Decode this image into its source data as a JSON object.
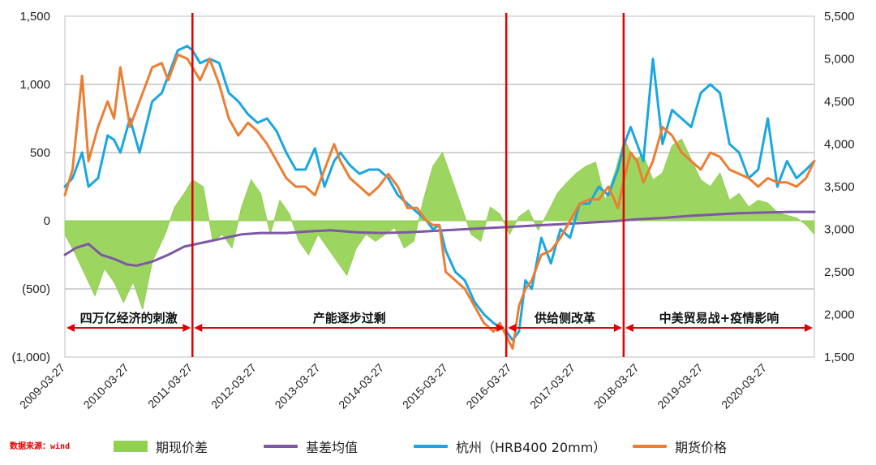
{
  "source_note": "数据来源：wind",
  "chart_data": {
    "type": "line",
    "x_ticks": [
      "2009-03-27",
      "2010-03-27",
      "2011-03-27",
      "2012-03-27",
      "2013-03-27",
      "2014-03-27",
      "2015-03-27",
      "2016-03-27",
      "2017-03-27",
      "2018-03-27",
      "2019-03-27",
      "2020-03-27"
    ],
    "x_range": [
      2009.23,
      2020.98
    ],
    "y_left": {
      "min": -1000,
      "max": 1500,
      "ticks": [
        -1000,
        -500,
        0,
        500,
        1000,
        1500
      ],
      "tick_labels": [
        "(1,000)",
        "(500)",
        "0",
        "500",
        "1,000",
        "1,500"
      ]
    },
    "y_right": {
      "min": 1500,
      "max": 5500,
      "ticks": [
        1500,
        2000,
        2500,
        3000,
        3500,
        4000,
        4500,
        5000,
        5500
      ],
      "tick_labels": [
        "1,500",
        "2,000",
        "2,500",
        "3,000",
        "3,500",
        "4,000",
        "4,500",
        "5,000",
        "5,500"
      ]
    },
    "grid": true,
    "legend_position": "bottom",
    "series": [
      {
        "name": "期现价差",
        "kind": "area",
        "axis": "left",
        "color": "#92d050",
        "x": [
          2009.23,
          2009.4,
          2009.55,
          2009.7,
          2009.85,
          2010.0,
          2010.15,
          2010.3,
          2010.45,
          2010.6,
          2010.8,
          2010.95,
          2011.1,
          2011.23,
          2011.4,
          2011.55,
          2011.7,
          2011.85,
          2012.0,
          2012.15,
          2012.3,
          2012.45,
          2012.6,
          2012.75,
          2012.9,
          2013.05,
          2013.2,
          2013.35,
          2013.5,
          2013.65,
          2013.8,
          2013.95,
          2014.1,
          2014.25,
          2014.4,
          2014.55,
          2014.7,
          2014.85,
          2015.0,
          2015.15,
          2015.3,
          2015.45,
          2015.6,
          2015.75,
          2015.9,
          2016.05,
          2016.2,
          2016.35,
          2016.5,
          2016.65,
          2016.8,
          2016.95,
          2017.1,
          2017.25,
          2017.4,
          2017.55,
          2017.7,
          2017.85,
          2018.0,
          2018.15,
          2018.3,
          2018.45,
          2018.6,
          2018.75,
          2018.9,
          2019.05,
          2019.2,
          2019.35,
          2019.5,
          2019.65,
          2019.8,
          2019.95,
          2020.1,
          2020.25,
          2020.4,
          2020.55,
          2020.7,
          2020.85,
          2020.98
        ],
        "y": [
          -100,
          -250,
          -400,
          -550,
          -350,
          -450,
          -600,
          -450,
          -650,
          -300,
          -100,
          100,
          200,
          300,
          250,
          -150,
          -100,
          -200,
          100,
          300,
          200,
          -100,
          150,
          50,
          -150,
          -250,
          -100,
          -200,
          -300,
          -400,
          -200,
          -100,
          -150,
          -100,
          -50,
          -200,
          -150,
          150,
          400,
          500,
          300,
          100,
          -100,
          -150,
          100,
          50,
          -100,
          30,
          80,
          -70,
          60,
          200,
          280,
          350,
          400,
          430,
          150,
          350,
          600,
          450,
          480,
          300,
          350,
          550,
          600,
          450,
          300,
          250,
          350,
          150,
          200,
          100,
          150,
          130,
          60,
          40,
          20,
          -30,
          -100
        ]
      },
      {
        "name": "基差均值",
        "kind": "line",
        "axis": "left",
        "color": "#7e57a5",
        "x": [
          2009.23,
          2009.4,
          2009.6,
          2009.8,
          2010.0,
          2010.2,
          2010.35,
          2010.6,
          2010.85,
          2011.1,
          2011.4,
          2011.7,
          2012.0,
          2012.3,
          2012.7,
          2013.0,
          2013.4,
          2013.8,
          2014.2,
          2014.6,
          2015.0,
          2015.4,
          2015.8,
          2016.2,
          2016.6,
          2017.0,
          2017.4,
          2017.8,
          2018.2,
          2018.6,
          2019.0,
          2019.4,
          2019.8,
          2020.2,
          2020.6,
          2020.98
        ],
        "y": [
          -250,
          -200,
          -170,
          -250,
          -280,
          -320,
          -330,
          -300,
          -250,
          -190,
          -160,
          -130,
          -100,
          -90,
          -90,
          -80,
          -70,
          -85,
          -90,
          -85,
          -75,
          -65,
          -55,
          -45,
          -35,
          -25,
          -15,
          -5,
          10,
          20,
          35,
          45,
          55,
          60,
          65,
          65
        ]
      },
      {
        "name": "杭州（HRB400 20mm）",
        "kind": "line",
        "axis": "right",
        "color": "#19a7e0",
        "x": [
          2009.23,
          2009.35,
          2009.5,
          2009.6,
          2009.75,
          2009.9,
          2010.0,
          2010.1,
          2010.25,
          2010.4,
          2010.5,
          2010.6,
          2010.75,
          2010.85,
          2011.0,
          2011.15,
          2011.23,
          2011.35,
          2011.5,
          2011.65,
          2011.8,
          2011.95,
          2012.1,
          2012.25,
          2012.4,
          2012.55,
          2012.7,
          2012.85,
          2013.0,
          2013.15,
          2013.3,
          2013.45,
          2013.55,
          2013.7,
          2013.85,
          2014.0,
          2014.15,
          2014.3,
          2014.45,
          2014.6,
          2014.75,
          2014.9,
          2015.0,
          2015.1,
          2015.2,
          2015.35,
          2015.5,
          2015.65,
          2015.8,
          2015.95,
          2016.05,
          2016.15,
          2016.25,
          2016.35,
          2016.45,
          2016.55,
          2016.7,
          2016.85,
          2017.0,
          2017.15,
          2017.3,
          2017.45,
          2017.6,
          2017.75,
          2017.9,
          2018.0,
          2018.1,
          2018.2,
          2018.3,
          2018.45,
          2018.6,
          2018.75,
          2018.9,
          2019.05,
          2019.2,
          2019.35,
          2019.5,
          2019.65,
          2019.8,
          2019.95,
          2020.1,
          2020.25,
          2020.4,
          2020.55,
          2020.7,
          2020.85,
          2020.98
        ],
        "y": [
          3500,
          3600,
          3900,
          3500,
          3600,
          4100,
          4050,
          3900,
          4300,
          3900,
          4200,
          4500,
          4600,
          4800,
          5100,
          5150,
          5100,
          4950,
          5000,
          4950,
          4600,
          4500,
          4350,
          4250,
          4300,
          4150,
          3900,
          3700,
          3700,
          3950,
          3500,
          3800,
          3900,
          3750,
          3650,
          3700,
          3700,
          3600,
          3400,
          3300,
          3200,
          3100,
          3000,
          3050,
          2750,
          2500,
          2400,
          2150,
          2000,
          1900,
          1850,
          1800,
          1700,
          1800,
          2400,
          2300,
          2900,
          2600,
          3000,
          2900,
          3300,
          3300,
          3500,
          3400,
          3700,
          4000,
          4200,
          4000,
          3800,
          5000,
          4000,
          4400,
          4300,
          4200,
          4600,
          4700,
          4600,
          4000,
          3900,
          3600,
          3700,
          4300,
          3500,
          3800,
          3600,
          3700,
          3800
        ]
      },
      {
        "name": "期货价格",
        "kind": "line",
        "axis": "right",
        "color": "#ed7d31",
        "x": [
          2009.23,
          2009.35,
          2009.5,
          2009.6,
          2009.75,
          2009.9,
          2010.0,
          2010.1,
          2010.25,
          2010.4,
          2010.5,
          2010.6,
          2010.75,
          2010.85,
          2011.0,
          2011.15,
          2011.23,
          2011.35,
          2011.5,
          2011.65,
          2011.8,
          2011.95,
          2012.1,
          2012.25,
          2012.4,
          2012.55,
          2012.7,
          2012.85,
          2013.0,
          2013.15,
          2013.3,
          2013.45,
          2013.55,
          2013.7,
          2013.85,
          2014.0,
          2014.15,
          2014.3,
          2014.45,
          2014.6,
          2014.75,
          2014.9,
          2015.0,
          2015.1,
          2015.2,
          2015.35,
          2015.5,
          2015.65,
          2015.8,
          2015.95,
          2016.05,
          2016.15,
          2016.25,
          2016.35,
          2016.45,
          2016.55,
          2016.7,
          2016.85,
          2017.0,
          2017.15,
          2017.3,
          2017.45,
          2017.6,
          2017.75,
          2017.9,
          2018.0,
          2018.1,
          2018.2,
          2018.3,
          2018.45,
          2018.6,
          2018.75,
          2018.9,
          2019.05,
          2019.2,
          2019.35,
          2019.5,
          2019.65,
          2019.8,
          2019.95,
          2020.1,
          2020.25,
          2020.4,
          2020.55,
          2020.7,
          2020.85,
          2020.98
        ],
        "y": [
          3400,
          3700,
          4800,
          3800,
          4200,
          4500,
          4300,
          4900,
          4200,
          4500,
          4700,
          4900,
          4950,
          4750,
          5050,
          5000,
          4900,
          4750,
          5000,
          4700,
          4300,
          4100,
          4250,
          4150,
          4000,
          3800,
          3600,
          3500,
          3500,
          3400,
          3700,
          4000,
          3800,
          3600,
          3500,
          3400,
          3500,
          3650,
          3500,
          3250,
          3250,
          3100,
          3050,
          3050,
          2500,
          2400,
          2300,
          2100,
          1900,
          1800,
          1900,
          1750,
          1600,
          2100,
          2300,
          2400,
          2700,
          2750,
          2900,
          3100,
          3300,
          3350,
          3350,
          3500,
          3250,
          3600,
          3900,
          3800,
          3550,
          3800,
          4200,
          4100,
          3900,
          3800,
          3700,
          3900,
          3850,
          3700,
          3650,
          3600,
          3500,
          3600,
          3550,
          3550,
          3500,
          3600,
          3800
        ]
      }
    ],
    "period_dividers": [
      2011.23,
      2016.15,
      2017.99
    ],
    "annotations": [
      {
        "text": "四万亿经济的刺激",
        "from": 2009.23,
        "to": 2011.23
      },
      {
        "text": "产能逐步过剩",
        "from": 2011.23,
        "to": 2016.15
      },
      {
        "text": "供给侧改革",
        "from": 2016.15,
        "to": 2017.99
      },
      {
        "text": "中美贸易战+疫情影响",
        "from": 2017.99,
        "to": 2020.98
      }
    ]
  }
}
